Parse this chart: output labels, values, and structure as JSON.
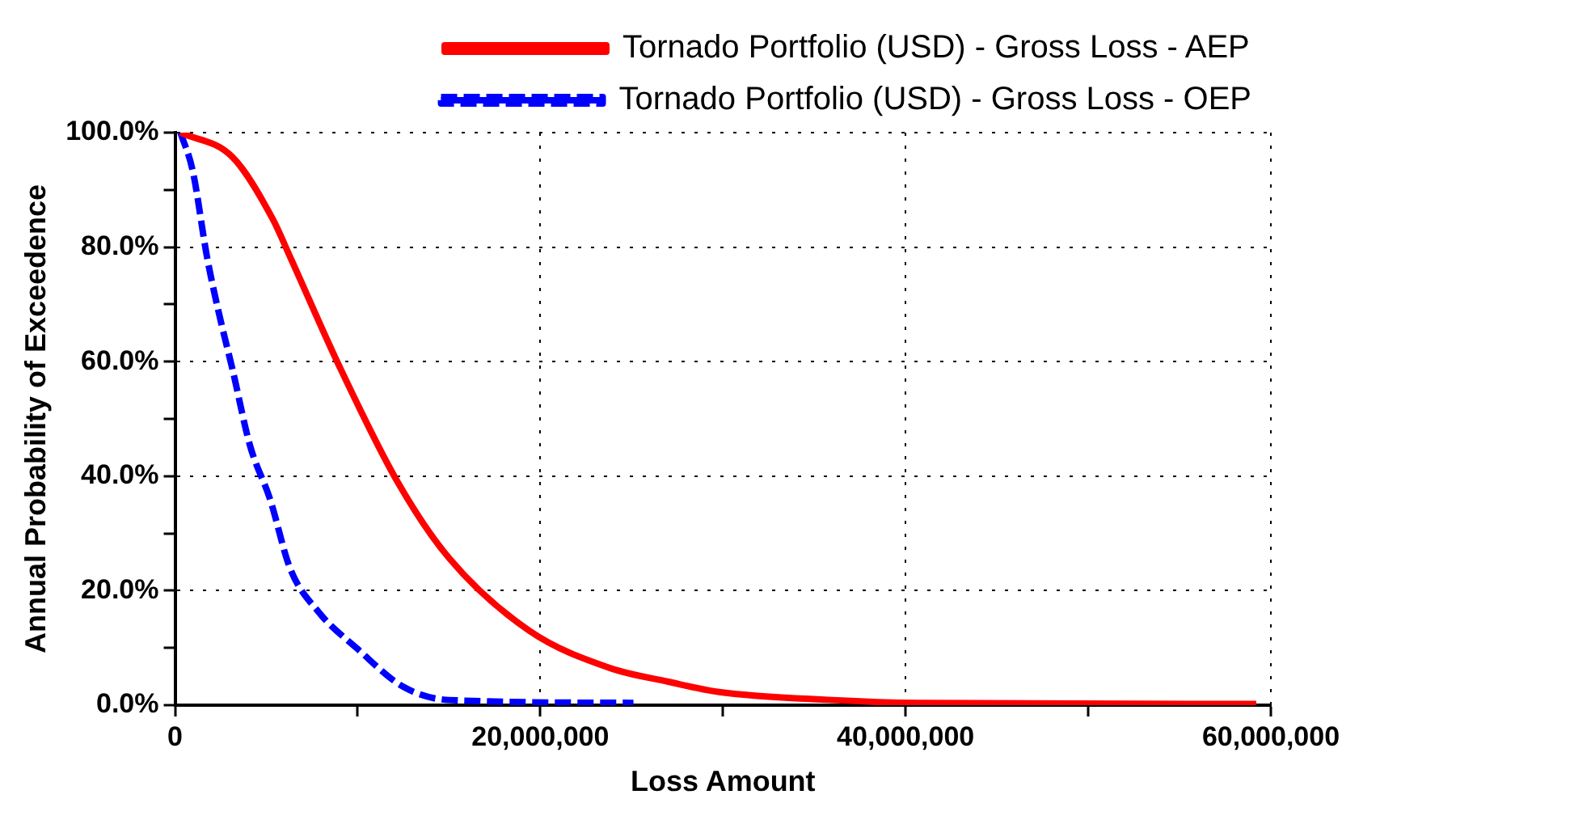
{
  "chart_data": {
    "type": "line",
    "xlabel": "Loss Amount",
    "ylabel": "Annual Probability of Exceedence",
    "xlim": [
      0,
      60000000
    ],
    "ylim": [
      0,
      100
    ],
    "xticks": [
      0,
      {
        "value": 10000000,
        "label": null
      },
      {
        "value": 20000000,
        "label": "20,000,000"
      },
      {
        "value": 30000000,
        "label": null
      },
      {
        "value": 40000000,
        "label": "40,000,000"
      },
      {
        "value": 50000000,
        "label": null
      },
      {
        "value": 60000000,
        "label": "60,000,000"
      }
    ],
    "yticks": [
      {
        "value": 0,
        "label": "0.0%"
      },
      {
        "value": 10,
        "label": null
      },
      {
        "value": 20,
        "label": "20.0%"
      },
      {
        "value": 30,
        "label": null
      },
      {
        "value": 40,
        "label": "40.0%"
      },
      {
        "value": 50,
        "label": null
      },
      {
        "value": 60,
        "label": "60.0%"
      },
      {
        "value": 70,
        "label": null
      },
      {
        "value": 80,
        "label": "80.0%"
      },
      {
        "value": 90,
        "label": null
      },
      {
        "value": 100,
        "label": "100.0%"
      }
    ],
    "grid": true,
    "legend": "top right",
    "marker": "none",
    "series": [
      {
        "name": "Tornado Portfolio (USD) - Gross Loss - AEP",
        "color": "#ff0000",
        "line_style": "solid",
        "x": [
          300000,
          3150000,
          5350000,
          6300000,
          8950000,
          12200000,
          15000000,
          19400000,
          23800000,
          27000000,
          29800000,
          36000000,
          40700000,
          59200000
        ],
        "values": [
          100,
          95.7,
          84.9,
          78.3,
          59.5,
          38.9,
          25.7,
          13,
          6.5,
          4.1,
          2.3,
          0.9,
          0.4,
          0.2
        ]
      },
      {
        "name": "Tornado Portfolio (USD) - Gross Loss - OEP",
        "color": "#0000ff",
        "line_style": "dashed",
        "x": [
          300000,
          970000,
          1750000,
          2370000,
          3150000,
          4100000,
          5200000,
          6300000,
          7850000,
          10000000,
          12500000,
          15000000,
          25100000
        ],
        "values": [
          100,
          93.3,
          78.3,
          68.9,
          58.6,
          45.4,
          36,
          23.9,
          16.3,
          9.8,
          3.2,
          0.9,
          0.4
        ]
      }
    ]
  }
}
